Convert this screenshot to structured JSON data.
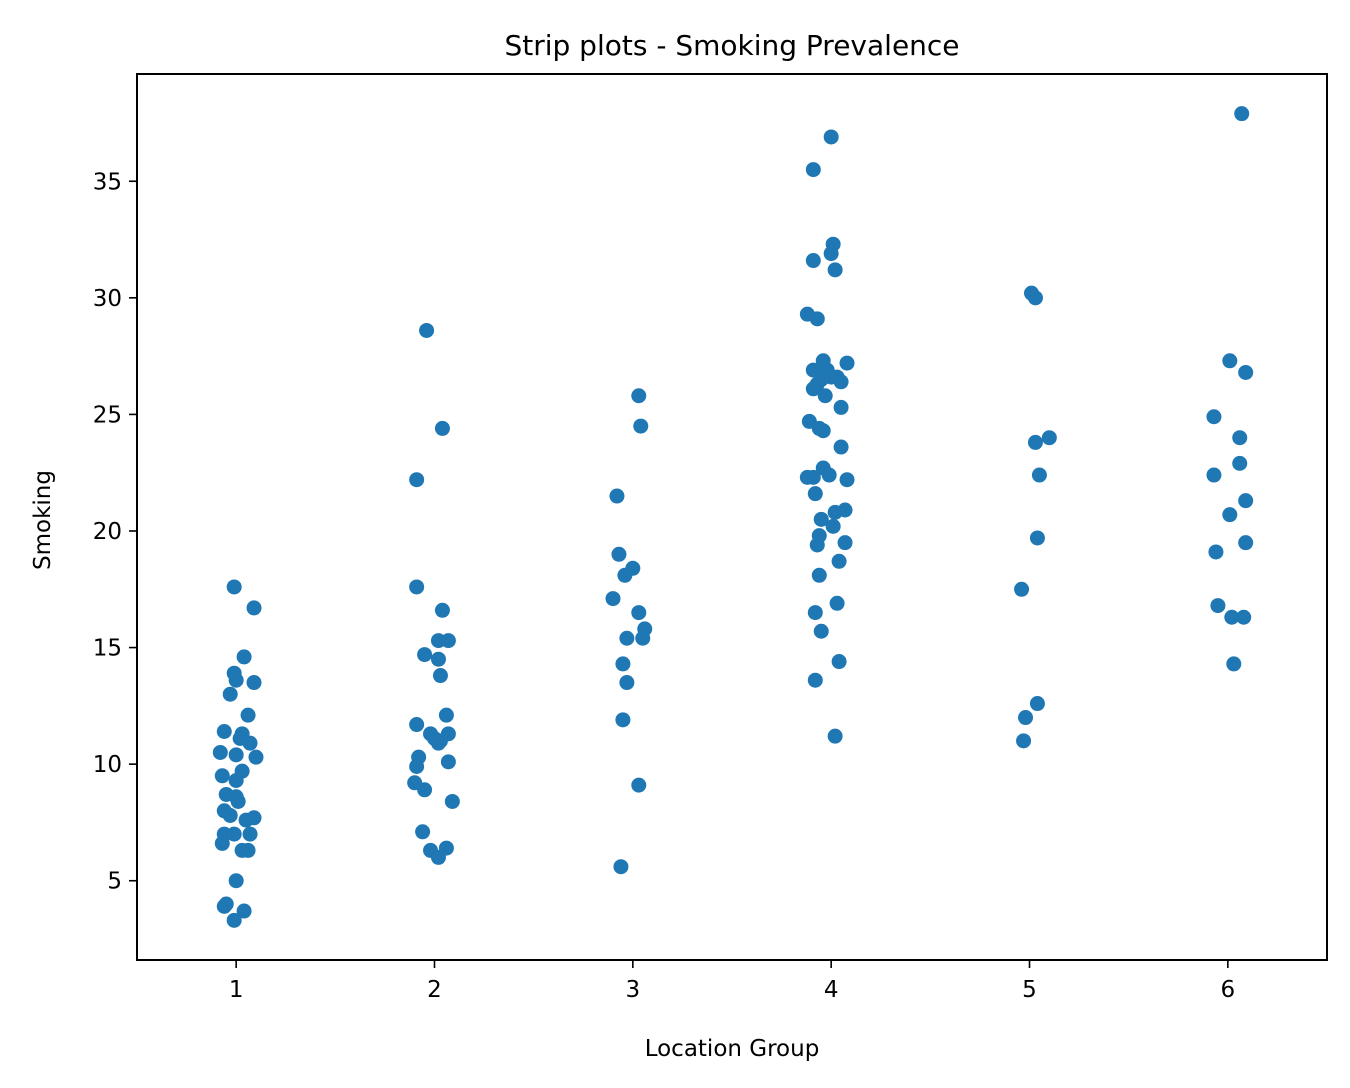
{
  "chart_data": {
    "type": "scatter",
    "subtype": "strip",
    "title": "Strip plots - Smoking Prevalence",
    "xlabel": "Location Group",
    "ylabel": "Smoking",
    "categories": [
      "1",
      "2",
      "3",
      "4",
      "5",
      "6"
    ],
    "ylim": [
      1.6,
      39.6
    ],
    "yticks": [
      5,
      10,
      15,
      20,
      25,
      30,
      35
    ],
    "grid": false,
    "marker_color": "#1f77b4",
    "series": [
      {
        "category": "1",
        "points": [
          [
            0.99,
            17.6
          ],
          [
            1.09,
            16.7
          ],
          [
            1.04,
            14.6
          ],
          [
            0.99,
            13.9
          ],
          [
            1.0,
            13.6
          ],
          [
            1.09,
            13.5
          ],
          [
            0.97,
            13.0
          ],
          [
            1.06,
            12.1
          ],
          [
            0.94,
            11.4
          ],
          [
            1.03,
            11.3
          ],
          [
            1.02,
            11.1
          ],
          [
            1.07,
            10.9
          ],
          [
            0.92,
            10.5
          ],
          [
            1.0,
            10.4
          ],
          [
            1.1,
            10.3
          ],
          [
            1.03,
            9.7
          ],
          [
            0.93,
            9.5
          ],
          [
            1.0,
            9.3
          ],
          [
            0.95,
            8.7
          ],
          [
            1.0,
            8.6
          ],
          [
            1.01,
            8.4
          ],
          [
            0.94,
            8.0
          ],
          [
            0.97,
            7.8
          ],
          [
            1.09,
            7.7
          ],
          [
            1.05,
            7.6
          ],
          [
            0.94,
            7.0
          ],
          [
            0.99,
            7.0
          ],
          [
            1.07,
            7.0
          ],
          [
            0.93,
            6.6
          ],
          [
            1.03,
            6.3
          ],
          [
            1.06,
            6.3
          ],
          [
            1.0,
            5.0
          ],
          [
            0.94,
            3.9
          ],
          [
            0.95,
            4.0
          ],
          [
            1.04,
            3.7
          ],
          [
            0.99,
            3.3
          ]
        ]
      },
      {
        "category": "2",
        "points": [
          [
            1.96,
            28.6
          ],
          [
            2.04,
            24.4
          ],
          [
            1.91,
            22.2
          ],
          [
            1.91,
            17.6
          ],
          [
            2.04,
            16.6
          ],
          [
            2.02,
            15.3
          ],
          [
            2.07,
            15.3
          ],
          [
            1.95,
            14.7
          ],
          [
            2.02,
            14.5
          ],
          [
            2.03,
            13.8
          ],
          [
            2.06,
            12.1
          ],
          [
            1.91,
            11.7
          ],
          [
            1.98,
            11.3
          ],
          [
            2.0,
            11.1
          ],
          [
            2.07,
            11.3
          ],
          [
            2.03,
            11.0
          ],
          [
            2.02,
            10.9
          ],
          [
            1.92,
            10.3
          ],
          [
            1.91,
            9.9
          ],
          [
            2.07,
            10.1
          ],
          [
            1.9,
            9.2
          ],
          [
            1.95,
            8.9
          ],
          [
            2.09,
            8.4
          ],
          [
            1.94,
            7.1
          ],
          [
            1.98,
            6.3
          ],
          [
            2.06,
            6.4
          ],
          [
            2.02,
            6.0
          ]
        ]
      },
      {
        "category": "3",
        "points": [
          [
            3.03,
            25.8
          ],
          [
            3.04,
            24.5
          ],
          [
            2.92,
            21.5
          ],
          [
            2.93,
            19.0
          ],
          [
            3.0,
            18.4
          ],
          [
            2.96,
            18.1
          ],
          [
            2.9,
            17.1
          ],
          [
            3.03,
            16.5
          ],
          [
            3.06,
            15.8
          ],
          [
            2.97,
            15.4
          ],
          [
            3.05,
            15.4
          ],
          [
            2.95,
            14.3
          ],
          [
            2.97,
            13.5
          ],
          [
            2.95,
            11.9
          ],
          [
            3.03,
            9.1
          ],
          [
            2.94,
            5.6
          ]
        ]
      },
      {
        "category": "4",
        "points": [
          [
            4.0,
            36.9
          ],
          [
            3.91,
            35.5
          ],
          [
            4.01,
            32.3
          ],
          [
            4.0,
            31.9
          ],
          [
            3.91,
            31.6
          ],
          [
            4.02,
            31.2
          ],
          [
            3.88,
            29.3
          ],
          [
            3.93,
            29.1
          ],
          [
            3.96,
            27.3
          ],
          [
            4.08,
            27.2
          ],
          [
            3.91,
            26.9
          ],
          [
            3.98,
            26.9
          ],
          [
            4.03,
            26.6
          ],
          [
            4.0,
            26.6
          ],
          [
            3.95,
            26.5
          ],
          [
            4.05,
            26.4
          ],
          [
            3.93,
            26.3
          ],
          [
            3.91,
            26.1
          ],
          [
            3.97,
            25.8
          ],
          [
            4.05,
            25.3
          ],
          [
            3.89,
            24.7
          ],
          [
            3.94,
            24.4
          ],
          [
            3.96,
            24.3
          ],
          [
            4.05,
            23.6
          ],
          [
            3.96,
            22.7
          ],
          [
            3.91,
            22.3
          ],
          [
            3.99,
            22.4
          ],
          [
            3.88,
            22.3
          ],
          [
            4.08,
            22.2
          ],
          [
            3.92,
            21.6
          ],
          [
            4.02,
            20.8
          ],
          [
            4.07,
            20.9
          ],
          [
            3.95,
            20.5
          ],
          [
            4.01,
            20.2
          ],
          [
            3.94,
            19.8
          ],
          [
            3.93,
            19.4
          ],
          [
            4.07,
            19.5
          ],
          [
            3.94,
            18.1
          ],
          [
            4.04,
            18.7
          ],
          [
            3.92,
            16.5
          ],
          [
            4.03,
            16.9
          ],
          [
            3.95,
            15.7
          ],
          [
            4.04,
            14.4
          ],
          [
            3.92,
            13.6
          ],
          [
            4.02,
            11.2
          ]
        ]
      },
      {
        "category": "5",
        "points": [
          [
            5.01,
            30.2
          ],
          [
            5.03,
            30.0
          ],
          [
            5.1,
            24.0
          ],
          [
            5.03,
            23.8
          ],
          [
            5.05,
            22.4
          ],
          [
            5.04,
            19.7
          ],
          [
            4.96,
            17.5
          ],
          [
            5.04,
            12.6
          ],
          [
            4.98,
            12.0
          ],
          [
            4.97,
            11.0
          ]
        ]
      },
      {
        "category": "6",
        "points": [
          [
            6.07,
            37.9
          ],
          [
            6.01,
            27.3
          ],
          [
            6.09,
            26.8
          ],
          [
            5.93,
            24.9
          ],
          [
            6.06,
            24.0
          ],
          [
            5.93,
            22.4
          ],
          [
            6.06,
            22.9
          ],
          [
            6.09,
            21.3
          ],
          [
            6.01,
            20.7
          ],
          [
            6.09,
            19.5
          ],
          [
            5.94,
            19.1
          ],
          [
            5.95,
            16.8
          ],
          [
            6.02,
            16.3
          ],
          [
            6.08,
            16.3
          ],
          [
            6.03,
            14.3
          ]
        ]
      }
    ]
  }
}
